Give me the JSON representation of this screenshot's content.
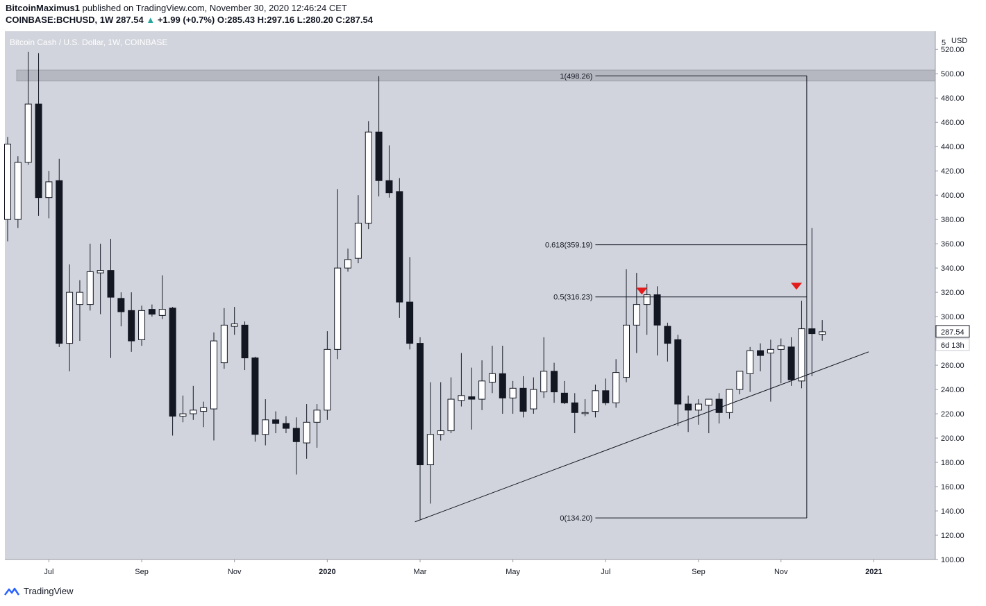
{
  "header": {
    "author": "BitcoinMaximus1",
    "published_text": "published on TradingView.com, November 30, 2020 12:46:24 CET",
    "symbol": "COINBASE:BCHUSD, 1W",
    "last": "287.54",
    "change": "+1.99 (+0.7%)",
    "open_label": "O:",
    "open": "285.43",
    "high_label": "H:",
    "high": "297.16",
    "low_label": "L:",
    "low": "280.20",
    "close_label": "C:",
    "close": "287.54"
  },
  "footer": {
    "brand": "TradingView",
    "logo_icon": "tradingview-logo-icon"
  },
  "colors": {
    "background": "#d1d4dc",
    "up_fill": "#ffffff",
    "down_fill": "#131722",
    "arrow": "#e31b1b",
    "zone": "#b2b5be"
  },
  "chart_data": {
    "type": "candlestick",
    "title": "Bitcoin Cash / U.S. Dollar, 1W, COINBASE",
    "currency": "USD",
    "y_axis_label_top": "5",
    "ylim": [
      100,
      535
    ],
    "y_ticks": [
      100,
      120,
      140,
      160,
      180,
      200,
      220,
      240,
      260,
      280,
      300,
      320,
      340,
      360,
      380,
      400,
      420,
      440,
      460,
      480,
      500,
      520
    ],
    "x_ticks": [
      {
        "label": "Jul",
        "index": 4
      },
      {
        "label": "Sep",
        "index": 13
      },
      {
        "label": "Nov",
        "index": 22
      },
      {
        "label": "2020",
        "index": 31
      },
      {
        "label": "Mar",
        "index": 40
      },
      {
        "label": "May",
        "index": 49
      },
      {
        "label": "Jul",
        "index": 58
      },
      {
        "label": "Sep",
        "index": 67
      },
      {
        "label": "Nov",
        "index": 75
      },
      {
        "label": "2021",
        "index": 84
      }
    ],
    "candles": [
      {
        "o": 380,
        "h": 448,
        "l": 362,
        "c": 442
      },
      {
        "o": 380,
        "h": 432,
        "l": 373,
        "c": 427
      },
      {
        "o": 427,
        "h": 518,
        "l": 425,
        "c": 475
      },
      {
        "o": 475,
        "h": 517,
        "l": 383,
        "c": 398
      },
      {
        "o": 398,
        "h": 420,
        "l": 381,
        "c": 411
      },
      {
        "o": 412,
        "h": 430,
        "l": 275,
        "c": 278
      },
      {
        "o": 278,
        "h": 343,
        "l": 255,
        "c": 320
      },
      {
        "o": 310,
        "h": 330,
        "l": 280,
        "c": 320
      },
      {
        "o": 310,
        "h": 360,
        "l": 305,
        "c": 337
      },
      {
        "o": 336,
        "h": 360,
        "l": 302,
        "c": 338
      },
      {
        "o": 338,
        "h": 364,
        "l": 266,
        "c": 316
      },
      {
        "o": 315,
        "h": 320,
        "l": 292,
        "c": 304
      },
      {
        "o": 305,
        "h": 320,
        "l": 271,
        "c": 280
      },
      {
        "o": 281,
        "h": 309,
        "l": 276,
        "c": 305
      },
      {
        "o": 306,
        "h": 310,
        "l": 300,
        "c": 302
      },
      {
        "o": 301,
        "h": 334,
        "l": 298,
        "c": 306
      },
      {
        "o": 307,
        "h": 308,
        "l": 202,
        "c": 218
      },
      {
        "o": 218,
        "h": 235,
        "l": 213,
        "c": 220
      },
      {
        "o": 220,
        "h": 243,
        "l": 215,
        "c": 223
      },
      {
        "o": 222,
        "h": 230,
        "l": 209,
        "c": 225
      },
      {
        "o": 224,
        "h": 287,
        "l": 198,
        "c": 280
      },
      {
        "o": 262,
        "h": 307,
        "l": 257,
        "c": 293
      },
      {
        "o": 292,
        "h": 308,
        "l": 285,
        "c": 294
      },
      {
        "o": 293,
        "h": 296,
        "l": 256,
        "c": 266
      },
      {
        "o": 266,
        "h": 267,
        "l": 197,
        "c": 203
      },
      {
        "o": 203,
        "h": 232,
        "l": 194,
        "c": 215
      },
      {
        "o": 215,
        "h": 222,
        "l": 204,
        "c": 212
      },
      {
        "o": 212,
        "h": 218,
        "l": 204,
        "c": 208
      },
      {
        "o": 208,
        "h": 217,
        "l": 170,
        "c": 197
      },
      {
        "o": 196,
        "h": 228,
        "l": 183,
        "c": 213
      },
      {
        "o": 213,
        "h": 228,
        "l": 192,
        "c": 223
      },
      {
        "o": 223,
        "h": 288,
        "l": 215,
        "c": 273
      },
      {
        "o": 273,
        "h": 405,
        "l": 265,
        "c": 340
      },
      {
        "o": 340,
        "h": 356,
        "l": 337,
        "c": 347
      },
      {
        "o": 348,
        "h": 400,
        "l": 344,
        "c": 377
      },
      {
        "o": 377,
        "h": 461,
        "l": 372,
        "c": 452
      },
      {
        "o": 452,
        "h": 498,
        "l": 399,
        "c": 412
      },
      {
        "o": 412,
        "h": 441,
        "l": 398,
        "c": 402
      },
      {
        "o": 403,
        "h": 414,
        "l": 299,
        "c": 312
      },
      {
        "o": 312,
        "h": 349,
        "l": 273,
        "c": 278
      },
      {
        "o": 278,
        "h": 283,
        "l": 133,
        "c": 178
      },
      {
        "o": 178,
        "h": 246,
        "l": 146,
        "c": 203
      },
      {
        "o": 203,
        "h": 246,
        "l": 198,
        "c": 206
      },
      {
        "o": 206,
        "h": 250,
        "l": 204,
        "c": 232
      },
      {
        "o": 231,
        "h": 270,
        "l": 226,
        "c": 235
      },
      {
        "o": 234,
        "h": 258,
        "l": 207,
        "c": 232
      },
      {
        "o": 232,
        "h": 264,
        "l": 223,
        "c": 247
      },
      {
        "o": 246,
        "h": 276,
        "l": 237,
        "c": 253
      },
      {
        "o": 253,
        "h": 276,
        "l": 220,
        "c": 233
      },
      {
        "o": 233,
        "h": 247,
        "l": 220,
        "c": 241
      },
      {
        "o": 241,
        "h": 251,
        "l": 217,
        "c": 222
      },
      {
        "o": 224,
        "h": 250,
        "l": 220,
        "c": 240
      },
      {
        "o": 238,
        "h": 283,
        "l": 233,
        "c": 255
      },
      {
        "o": 255,
        "h": 262,
        "l": 229,
        "c": 238
      },
      {
        "o": 237,
        "h": 247,
        "l": 228,
        "c": 229
      },
      {
        "o": 229,
        "h": 237,
        "l": 204,
        "c": 221
      },
      {
        "o": 221,
        "h": 232,
        "l": 218,
        "c": 221
      },
      {
        "o": 222,
        "h": 244,
        "l": 217,
        "c": 239
      },
      {
        "o": 239,
        "h": 249,
        "l": 227,
        "c": 229
      },
      {
        "o": 229,
        "h": 265,
        "l": 225,
        "c": 254
      },
      {
        "o": 250,
        "h": 339,
        "l": 246,
        "c": 293
      },
      {
        "o": 293,
        "h": 336,
        "l": 270,
        "c": 310
      },
      {
        "o": 310,
        "h": 327,
        "l": 285,
        "c": 318
      },
      {
        "o": 318,
        "h": 325,
        "l": 268,
        "c": 293
      },
      {
        "o": 292,
        "h": 295,
        "l": 263,
        "c": 278
      },
      {
        "o": 281,
        "h": 285,
        "l": 210,
        "c": 228
      },
      {
        "o": 228,
        "h": 235,
        "l": 205,
        "c": 223
      },
      {
        "o": 223,
        "h": 232,
        "l": 211,
        "c": 228
      },
      {
        "o": 227,
        "h": 232,
        "l": 204,
        "c": 232
      },
      {
        "o": 232,
        "h": 237,
        "l": 212,
        "c": 221
      },
      {
        "o": 221,
        "h": 240,
        "l": 216,
        "c": 240
      },
      {
        "o": 240,
        "h": 253,
        "l": 236,
        "c": 255
      },
      {
        "o": 253,
        "h": 275,
        "l": 238,
        "c": 272
      },
      {
        "o": 272,
        "h": 278,
        "l": 255,
        "c": 268
      },
      {
        "o": 270,
        "h": 281,
        "l": 230,
        "c": 273
      },
      {
        "o": 273,
        "h": 282,
        "l": 245,
        "c": 276
      },
      {
        "o": 275,
        "h": 283,
        "l": 243,
        "c": 248
      },
      {
        "o": 247,
        "h": 313,
        "l": 241,
        "c": 290
      },
      {
        "o": 290,
        "h": 373,
        "l": 251,
        "c": 286
      },
      {
        "o": 285.43,
        "h": 297.16,
        "l": 280.2,
        "c": 287.54
      }
    ],
    "resistance_zone": {
      "low": 494,
      "high": 503
    },
    "fib_levels": [
      {
        "label": "1(498.26)",
        "value": 498.26
      },
      {
        "label": "0.618(359.19)",
        "value": 359.19
      },
      {
        "label": "0.5(316.23)",
        "value": 316.23
      },
      {
        "label": "0(134.20)",
        "value": 134.2
      }
    ],
    "fib_range": {
      "from_index": 57,
      "to_index": 77.5
    },
    "trendline": {
      "from": {
        "index": 39.5,
        "value": 131
      },
      "to": {
        "index": 83.5,
        "value": 271
      }
    },
    "arrows": [
      {
        "index": 61.5,
        "value": 321
      },
      {
        "index": 76.5,
        "value": 325
      }
    ],
    "price_label": "287.54",
    "countdown_label": "6d 13h"
  }
}
